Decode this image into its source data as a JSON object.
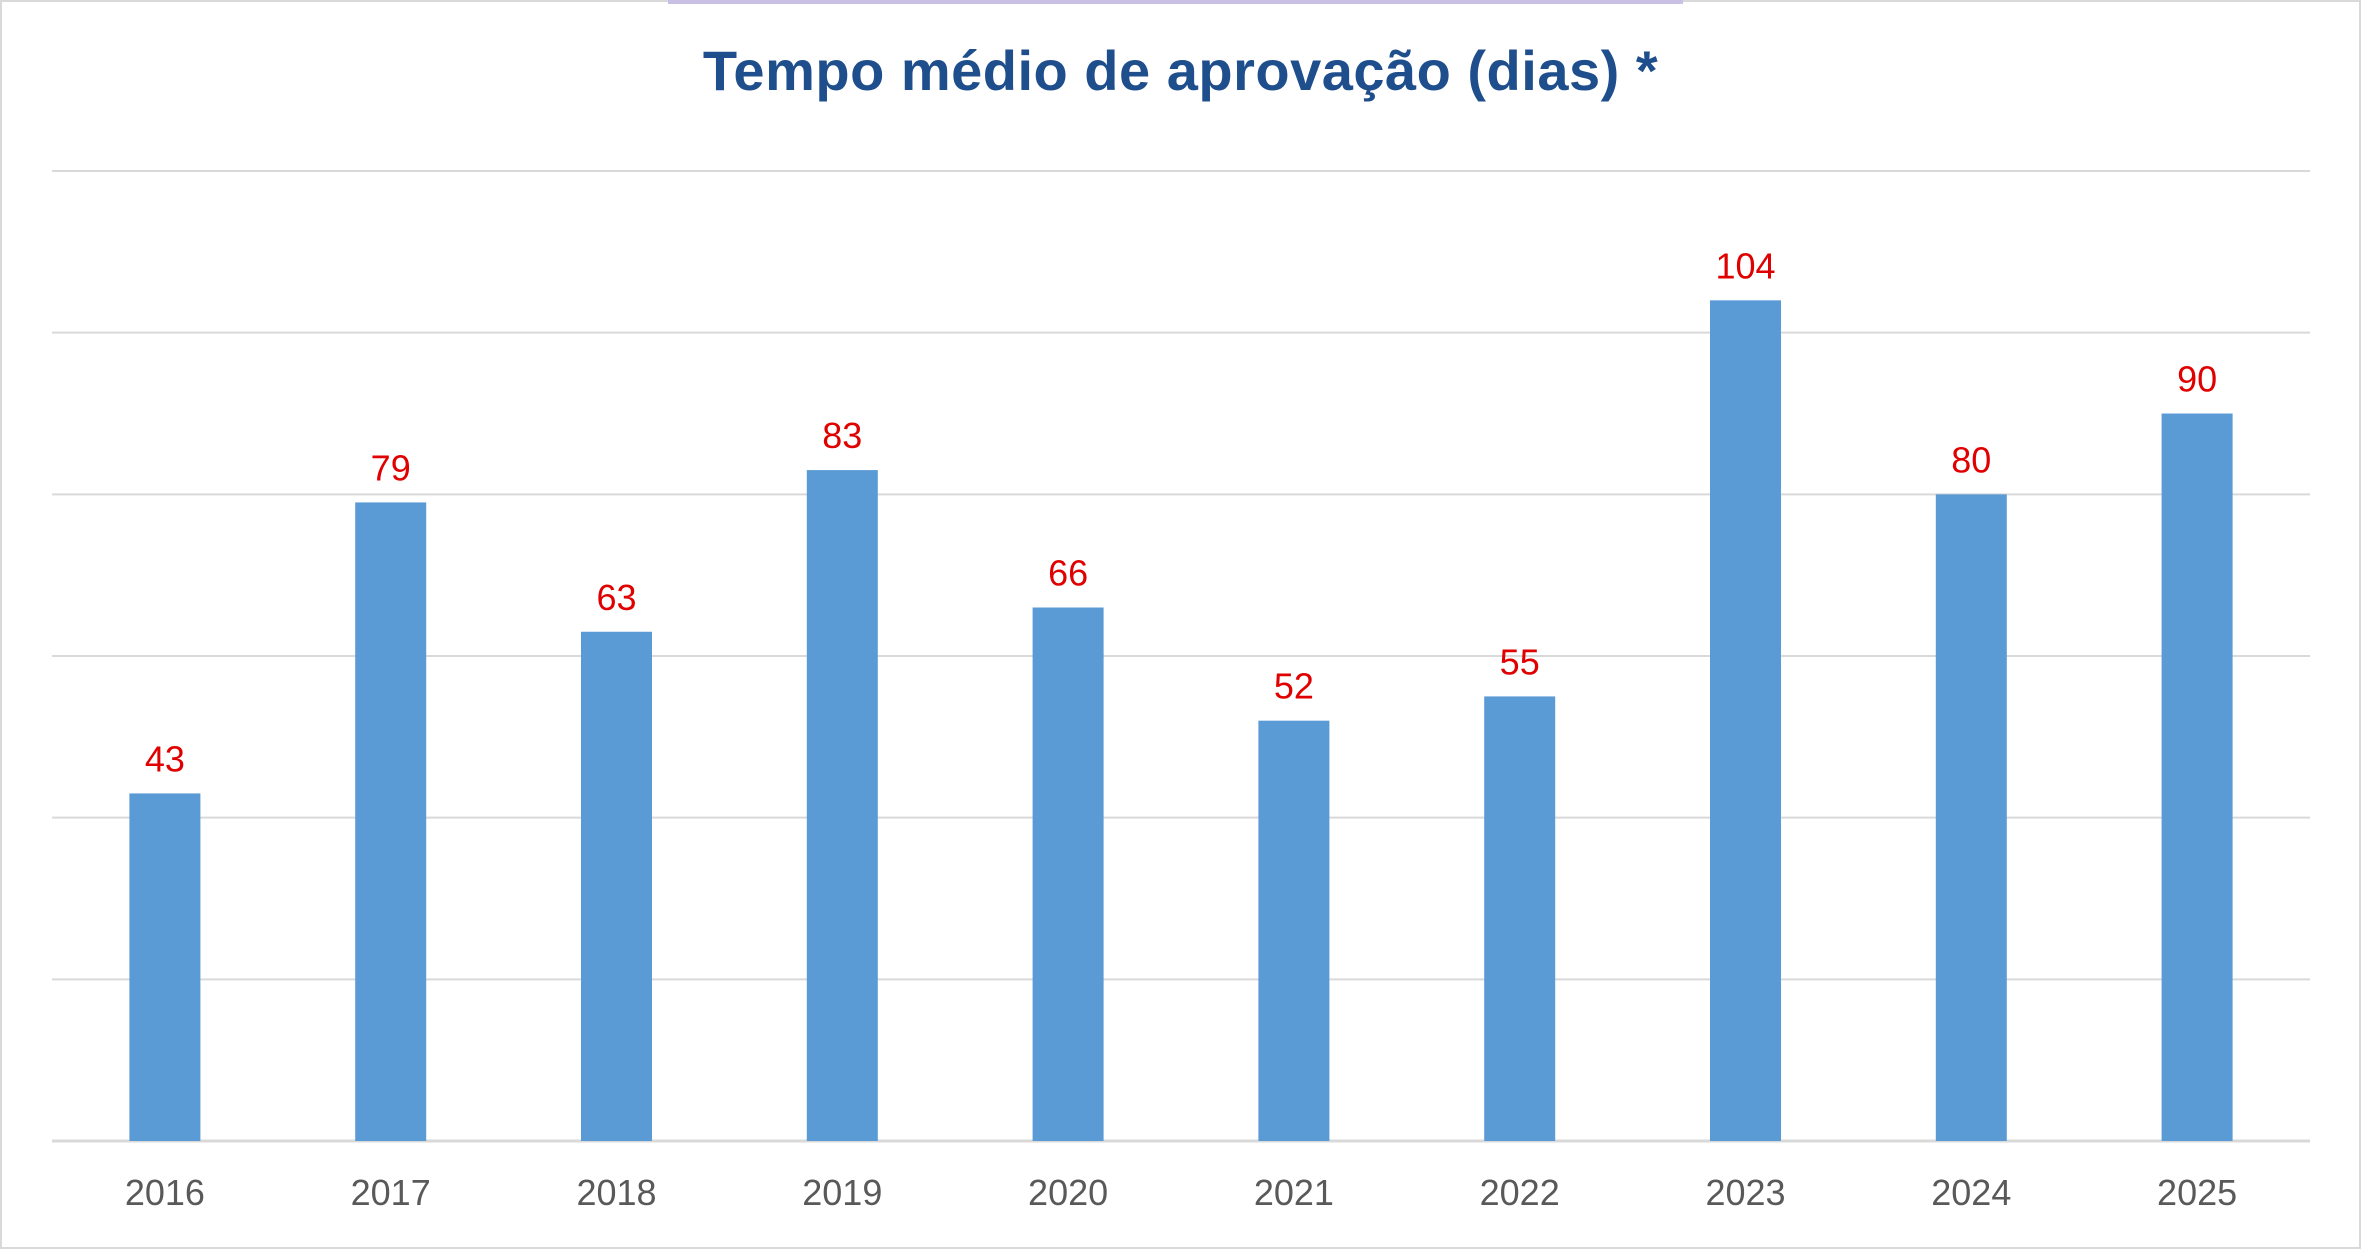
{
  "chart_data": {
    "type": "bar",
    "title": "Tempo médio de aprovação (dias) *",
    "categories": [
      "2016",
      "2017",
      "2018",
      "2019",
      "2020",
      "2021",
      "2022",
      "2023",
      "2024",
      "2025"
    ],
    "values": [
      43,
      79,
      63,
      83,
      66,
      52,
      55,
      104,
      80,
      90
    ],
    "xlabel": "",
    "ylabel": "",
    "ylim": [
      0,
      120
    ],
    "grid": true,
    "legend": "none",
    "colors": {
      "bar": "#5b9bd5",
      "data_label": "#e00000",
      "title": "#1f4e8c",
      "gridline": "#d9d9d9",
      "tick_label": "#595959"
    }
  }
}
